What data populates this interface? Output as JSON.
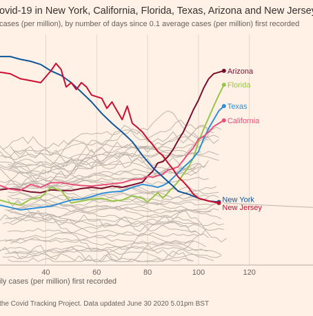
{
  "chart_data": {
    "type": "line",
    "title": "ovid-19 in New York, California, Florida, Texas, Arizona and New Jersey",
    "subtitle": "cases (per million), by number of days since 0.1 average cases (per million) first recorded",
    "xlabel": "ily cases (per million) first recorded",
    "source": "the Covid Tracking Project. Data updated June 30 2020 5.01pm BST",
    "xlim": [
      22,
      145
    ],
    "ylog": true,
    "ylim": [
      0.4,
      600
    ],
    "x_ticks": [
      40,
      60,
      80,
      100,
      120
    ],
    "grid": "vertical",
    "background_series_color": "#bdb5ac",
    "series": [
      {
        "name": "Arizona",
        "color": "#7a0c2e",
        "x": [
          22,
          26,
          30,
          34,
          38,
          42,
          46,
          50,
          54,
          58,
          62,
          66,
          70,
          74,
          78,
          80,
          82,
          84,
          86,
          88,
          90,
          92,
          94,
          96,
          98,
          100,
          102,
          104,
          106,
          108,
          110
        ],
        "y": [
          4.6,
          4.8,
          4.6,
          4.3,
          4.2,
          4.6,
          4.5,
          4.5,
          4.8,
          5.0,
          4.8,
          5.2,
          5.0,
          5.4,
          5.9,
          7.2,
          8.4,
          11,
          11.5,
          13.5,
          17,
          23,
          30,
          43,
          62,
          85,
          125,
          170,
          200,
          210,
          220
        ]
      },
      {
        "name": "Florida",
        "color": "#96c54a",
        "x": [
          22,
          26,
          30,
          34,
          38,
          42,
          46,
          50,
          54,
          58,
          62,
          66,
          70,
          74,
          78,
          80,
          82,
          84,
          86,
          88,
          90,
          92,
          94,
          96,
          98,
          100,
          102,
          104,
          106,
          108,
          110
        ],
        "y": [
          3.3,
          3.0,
          2.8,
          3.4,
          3.6,
          5.0,
          4.5,
          3.0,
          3.2,
          3.4,
          3.5,
          3.2,
          3.3,
          3.8,
          3.5,
          3.1,
          3.6,
          4.2,
          3.5,
          4.2,
          5.0,
          6.0,
          7.6,
          9.5,
          13,
          22,
          33,
          48,
          70,
          100,
          140
        ]
      },
      {
        "name": "Texas",
        "color": "#2f8fd6",
        "x": [
          22,
          26,
          30,
          34,
          38,
          42,
          46,
          50,
          54,
          58,
          62,
          66,
          70,
          74,
          78,
          82,
          84,
          86,
          88,
          90,
          92,
          94,
          96,
          98,
          100,
          102,
          104,
          106,
          108,
          110
        ],
        "y": [
          2.8,
          2.6,
          2.4,
          2.5,
          2.6,
          2.7,
          3.0,
          3.3,
          3.4,
          3.7,
          4.1,
          4.3,
          4.4,
          5.0,
          5.5,
          5.2,
          5.0,
          5.3,
          5.8,
          6.8,
          8.0,
          9.5,
          11,
          13,
          16,
          24,
          34,
          45,
          60,
          70
        ]
      },
      {
        "name": "California",
        "color": "#e84f7a",
        "x": [
          22,
          26,
          30,
          34,
          38,
          42,
          46,
          50,
          54,
          58,
          62,
          66,
          70,
          74,
          78,
          80,
          82,
          84,
          86,
          88,
          90,
          92,
          94,
          96,
          98,
          100,
          102,
          104,
          106,
          108,
          110
        ],
        "y": [
          5.3,
          4.7,
          4.5,
          5.5,
          5.0,
          5.8,
          5.8,
          5.5,
          5.3,
          5.2,
          5.4,
          5.6,
          5.8,
          6.4,
          6.6,
          7.2,
          6.9,
          7.3,
          7.6,
          8.8,
          9.1,
          9.8,
          12,
          15,
          18,
          24,
          26,
          30,
          36,
          40,
          44
        ]
      },
      {
        "name": "New York",
        "color": "#0f5499",
        "x": [
          22,
          26,
          30,
          34,
          38,
          42,
          46,
          50,
          54,
          58,
          62,
          66,
          70,
          74,
          78,
          82,
          86,
          88,
          90,
          92,
          96,
          100,
          104,
          108
        ],
        "y": [
          350,
          350,
          320,
          300,
          270,
          220,
          190,
          150,
          110,
          80,
          55,
          40,
          30,
          22,
          14,
          9.5,
          7.0,
          6.0,
          5.2,
          4.4,
          4.0,
          3.5,
          3.2,
          3.1
        ]
      },
      {
        "name": "New Jersey",
        "color": "#cc0a2e",
        "x": [
          22,
          26,
          30,
          34,
          38,
          42,
          44,
          46,
          48,
          50,
          52,
          54,
          56,
          58,
          62,
          64,
          66,
          68,
          70,
          72,
          74,
          76,
          78,
          80,
          82,
          84,
          86,
          88,
          90,
          92,
          94,
          96,
          98,
          100,
          104,
          108
        ],
        "y": [
          210,
          200,
          170,
          160,
          150,
          220,
          280,
          230,
          130,
          150,
          120,
          150,
          130,
          100,
          90,
          65,
          80,
          60,
          45,
          70,
          40,
          35,
          30,
          24,
          20,
          16,
          14,
          11,
          9,
          7,
          6,
          5,
          4,
          3.5,
          3.2,
          3.0
        ]
      }
    ]
  }
}
